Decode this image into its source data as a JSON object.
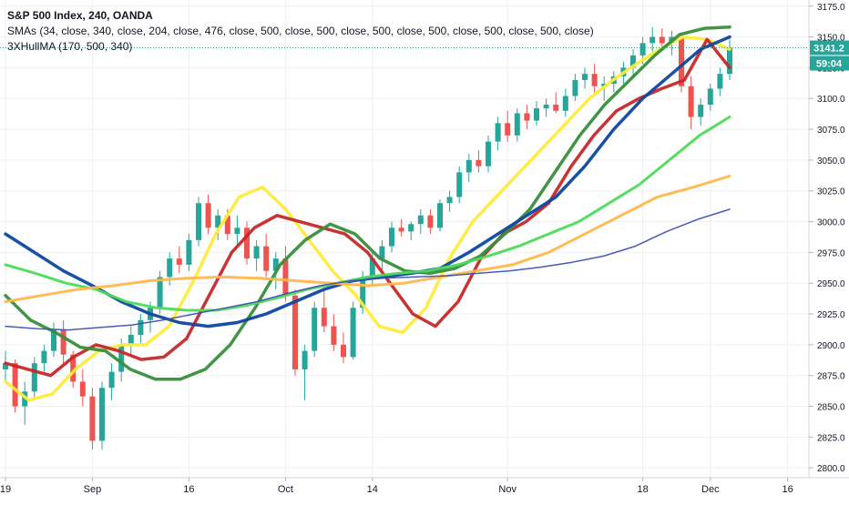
{
  "chart_data": {
    "type": "line",
    "title": "S&P 500 Index, 240, OANDA",
    "legend": [
      "SMAs (34, close, 340, close, 204, close, 476, close, 500, close, 500, close, 500, close, 500, close, 500, close, 500, close)",
      "3XHullMA (170, 500, 340)"
    ],
    "x_ticks": [
      "19",
      "Sep",
      "16",
      "Oct",
      "14",
      "Nov",
      "18",
      "Dec",
      "16"
    ],
    "x_tick_index": [
      0,
      9,
      19,
      29,
      38,
      52,
      66,
      73,
      81
    ],
    "y_ticks": [
      2800,
      2825,
      2850,
      2875,
      2900,
      2925,
      2950,
      2975,
      3000,
      3025,
      3050,
      3075,
      3100,
      3125,
      3150,
      3175
    ],
    "ylim": [
      2792,
      3180
    ],
    "last_price_label": "3141.2",
    "last_price": 3141.2,
    "countdown_label": "59:04",
    "grid": true,
    "candles": [
      [
        2880,
        2895,
        2870,
        2885
      ],
      [
        2885,
        2888,
        2845,
        2850
      ],
      [
        2850,
        2870,
        2835,
        2862
      ],
      [
        2862,
        2890,
        2855,
        2885
      ],
      [
        2885,
        2900,
        2878,
        2895
      ],
      [
        2895,
        2918,
        2890,
        2912
      ],
      [
        2912,
        2920,
        2885,
        2892
      ],
      [
        2892,
        2895,
        2865,
        2870
      ],
      [
        2870,
        2880,
        2850,
        2858
      ],
      [
        2858,
        2865,
        2815,
        2822
      ],
      [
        2822,
        2870,
        2815,
        2865
      ],
      [
        2865,
        2885,
        2855,
        2878
      ],
      [
        2878,
        2905,
        2870,
        2900
      ],
      [
        2900,
        2915,
        2890,
        2908
      ],
      [
        2908,
        2925,
        2900,
        2920
      ],
      [
        2920,
        2935,
        2910,
        2930
      ],
      [
        2930,
        2960,
        2925,
        2955
      ],
      [
        2955,
        2975,
        2948,
        2970
      ],
      [
        2970,
        2980,
        2958,
        2965
      ],
      [
        2965,
        2990,
        2960,
        2985
      ],
      [
        2985,
        3020,
        2980,
        3015
      ],
      [
        3015,
        3022,
        2990,
        2995
      ],
      [
        2995,
        3010,
        2985,
        3005
      ],
      [
        3005,
        3010,
        2985,
        2990
      ],
      [
        2990,
        3005,
        2980,
        2995
      ],
      [
        2995,
        3000,
        2965,
        2970
      ],
      [
        2970,
        2985,
        2960,
        2980
      ],
      [
        2980,
        2990,
        2955,
        2960
      ],
      [
        2960,
        2975,
        2945,
        2970
      ],
      [
        2970,
        2980,
        2935,
        2940
      ],
      [
        2940,
        2945,
        2875,
        2880
      ],
      [
        2880,
        2900,
        2855,
        2895
      ],
      [
        2895,
        2935,
        2890,
        2930
      ],
      [
        2930,
        2945,
        2910,
        2915
      ],
      [
        2915,
        2925,
        2895,
        2900
      ],
      [
        2900,
        2910,
        2885,
        2890
      ],
      [
        2890,
        2935,
        2888,
        2930
      ],
      [
        2930,
        2960,
        2925,
        2955
      ],
      [
        2955,
        2975,
        2948,
        2970
      ],
      [
        2970,
        2985,
        2960,
        2980
      ],
      [
        2980,
        3000,
        2975,
        2995
      ],
      [
        2995,
        3002,
        2988,
        2992
      ],
      [
        2992,
        3000,
        2985,
        2998
      ],
      [
        2998,
        3010,
        2990,
        3005
      ],
      [
        3005,
        3010,
        2990,
        2995
      ],
      [
        2995,
        3018,
        2992,
        3015
      ],
      [
        3015,
        3025,
        3008,
        3020
      ],
      [
        3020,
        3045,
        3015,
        3040
      ],
      [
        3040,
        3055,
        3032,
        3050
      ],
      [
        3050,
        3058,
        3040,
        3045
      ],
      [
        3045,
        3070,
        3040,
        3065
      ],
      [
        3065,
        3085,
        3058,
        3080
      ],
      [
        3080,
        3090,
        3065,
        3070
      ],
      [
        3070,
        3092,
        3065,
        3088
      ],
      [
        3088,
        3095,
        3075,
        3082
      ],
      [
        3082,
        3098,
        3078,
        3092
      ],
      [
        3092,
        3100,
        3085,
        3095
      ],
      [
        3095,
        3105,
        3088,
        3090
      ],
      [
        3090,
        3108,
        3085,
        3102
      ],
      [
        3102,
        3120,
        3098,
        3115
      ],
      [
        3115,
        3125,
        3108,
        3120
      ],
      [
        3120,
        3128,
        3105,
        3110
      ],
      [
        3110,
        3118,
        3098,
        3112
      ],
      [
        3112,
        3122,
        3105,
        3118
      ],
      [
        3118,
        3130,
        3112,
        3125
      ],
      [
        3125,
        3140,
        3118,
        3135
      ],
      [
        3135,
        3150,
        3128,
        3145
      ],
      [
        3145,
        3158,
        3138,
        3150
      ],
      [
        3150,
        3157,
        3140,
        3145
      ],
      [
        3145,
        3155,
        3135,
        3150
      ],
      [
        3150,
        3153,
        3105,
        3110
      ],
      [
        3110,
        3118,
        3075,
        3085
      ],
      [
        3085,
        3100,
        3078,
        3095
      ],
      [
        3095,
        3112,
        3090,
        3108
      ],
      [
        3108,
        3125,
        3102,
        3120
      ],
      [
        3120,
        3148,
        3115,
        3141.2
      ]
    ],
    "series": [
      {
        "color": "#ffeb3b",
        "values": [
          2870,
          2855,
          2860,
          2880,
          2895,
          2900,
          2900,
          2915,
          2950,
          2990,
          3020,
          3028,
          3010,
          2985,
          2960,
          2940,
          2915,
          2910,
          2930,
          2970,
          3000,
          3020,
          3040,
          3060,
          3080,
          3100,
          3115,
          3128,
          3140,
          3150,
          3148,
          3140
        ]
      },
      {
        "color": "#c62828",
        "values": [
          2885,
          2880,
          2875,
          2890,
          2900,
          2895,
          2888,
          2890,
          2905,
          2940,
          2975,
          2995,
          3005,
          3000,
          2995,
          2990,
          2975,
          2950,
          2925,
          2915,
          2935,
          2970,
          2990,
          3000,
          3015,
          3045,
          3070,
          3090,
          3100,
          3108,
          3115,
          3148,
          3125
        ]
      },
      {
        "color": "#388e3c",
        "values": [
          2940,
          2920,
          2910,
          2898,
          2895,
          2880,
          2872,
          2872,
          2880,
          2900,
          2930,
          2965,
          2985,
          2998,
          2990,
          2970,
          2960,
          2958,
          2962,
          2972,
          2990,
          3010,
          3040,
          3070,
          3095,
          3115,
          3135,
          3152,
          3157,
          3158
        ]
      },
      {
        "color": "#0d47a1",
        "values": [
          2990,
          2975,
          2960,
          2948,
          2935,
          2925,
          2918,
          2915,
          2918,
          2925,
          2935,
          2945,
          2952,
          2955,
          2958,
          2962,
          2975,
          2990,
          3005,
          3020,
          3045,
          3075,
          3100,
          3120,
          3140,
          3150
        ]
      },
      {
        "color": "#4cdb5a",
        "values": [
          2965,
          2958,
          2950,
          2945,
          2935,
          2930,
          2928,
          2928,
          2932,
          2938,
          2945,
          2950,
          2955,
          2958,
          2960,
          2965,
          2972,
          2980,
          2990,
          3000,
          3015,
          3030,
          3050,
          3070,
          3085
        ]
      },
      {
        "color": "#ffb74d",
        "values": [
          2935,
          2940,
          2945,
          2948,
          2952,
          2954,
          2955,
          2954,
          2952,
          2950,
          2948,
          2950,
          2955,
          2960,
          2965,
          2975,
          2990,
          3005,
          3020,
          3028,
          3037
        ]
      },
      {
        "color": "#3f51b5",
        "values": [
          2915,
          2913,
          2912,
          2914,
          2916,
          2920,
          2925,
          2930,
          2935,
          2942,
          2948,
          2952,
          2954,
          2955,
          2956,
          2958,
          2960,
          2963,
          2967,
          2972,
          2980,
          2992,
          3002,
          3010
        ]
      }
    ]
  }
}
